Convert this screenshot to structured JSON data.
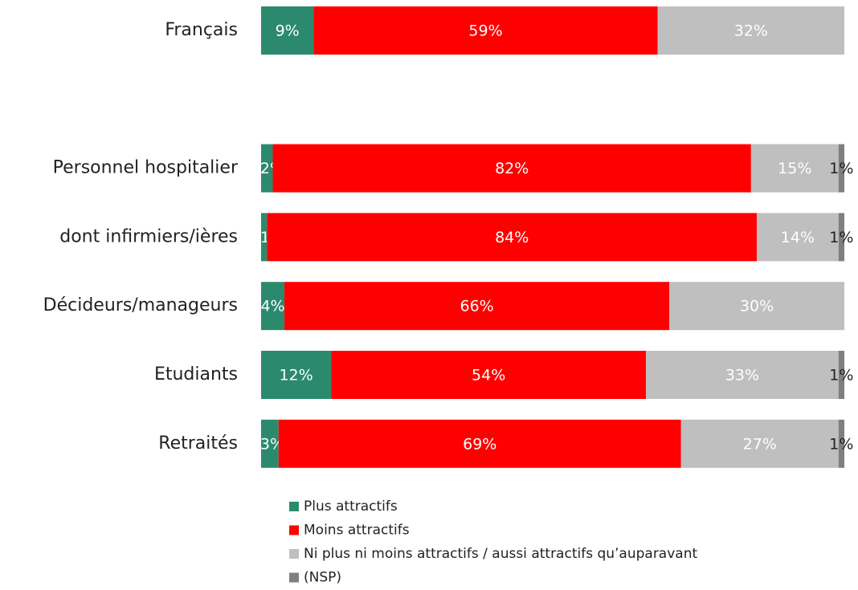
{
  "chart_data": {
    "type": "stacked-bar-horizontal",
    "categories": [
      "Français",
      null,
      "Personnel hospitalier",
      "dont infirmiers/ières",
      "Décideurs/manageurs",
      "Etudiants",
      "Retraités"
    ],
    "xlim": [
      0,
      100
    ],
    "series": [
      {
        "name": "Plus attractifs",
        "color": "#2b8a6e",
        "values": [
          9,
          null,
          2,
          1,
          4,
          12,
          3
        ],
        "value_labels": [
          "9%",
          null,
          "2%",
          "1%",
          "4%",
          "12%",
          "3%"
        ]
      },
      {
        "name": "Moins attractifs",
        "color": "#ff0000",
        "values": [
          59,
          null,
          82,
          84,
          66,
          54,
          69
        ],
        "value_labels": [
          "59%",
          null,
          "82%",
          "84%",
          "66%",
          "54%",
          "69%"
        ]
      },
      {
        "name": "Ni plus ni moins attractifs / aussi attractifs qu’auparavant",
        "color": "#bfbfbf",
        "values": [
          32,
          null,
          15,
          14,
          30,
          33,
          27
        ],
        "value_labels": [
          "32%",
          null,
          "15%",
          "14%",
          "30%",
          "33%",
          "27%"
        ]
      },
      {
        "name": "(NSP)",
        "color": "#7f7f7f",
        "values": [
          null,
          null,
          1,
          1,
          null,
          1,
          1
        ],
        "value_labels": [
          null,
          null,
          "1%",
          "1%",
          null,
          "1%",
          "1%"
        ]
      }
    ],
    "legend": "bottom"
  }
}
